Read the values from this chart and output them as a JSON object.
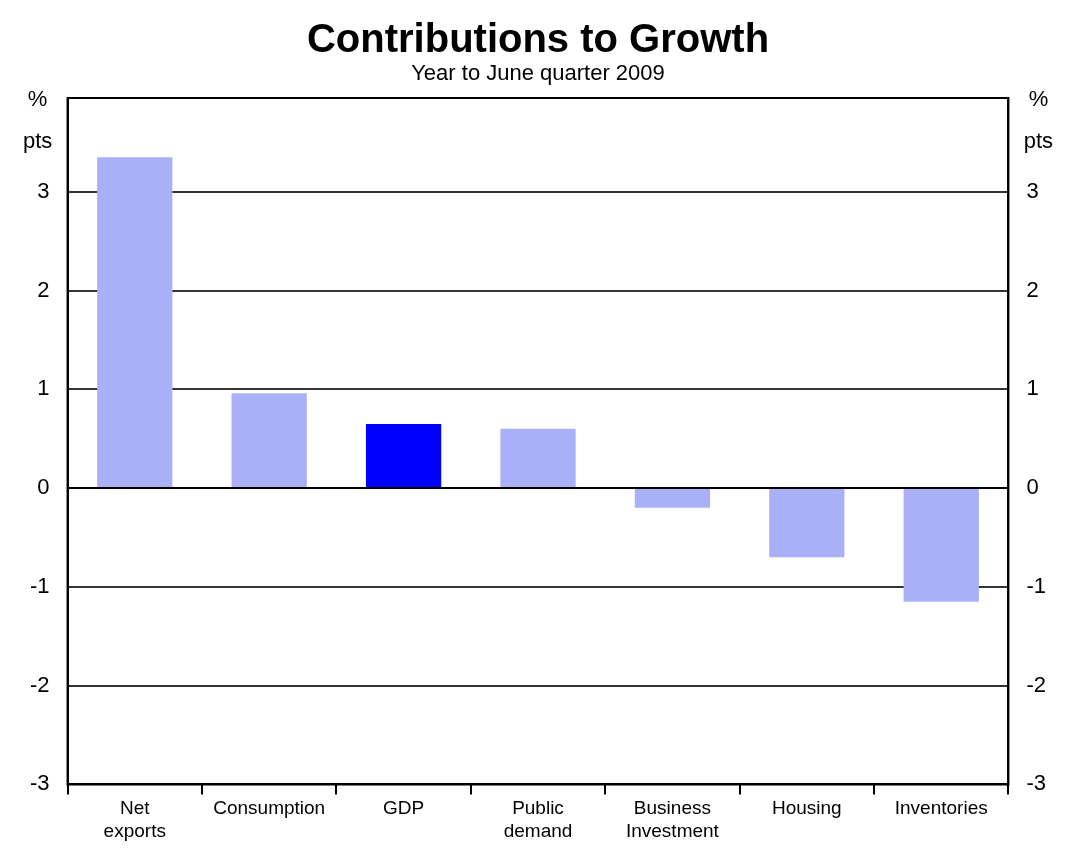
{
  "chart_data": {
    "type": "bar",
    "title": "Contributions to Growth",
    "subtitle": "Year to June quarter 2009",
    "categories": [
      "Net exports",
      "Consumption",
      "GDP",
      "Public demand",
      "Business Investment",
      "Housing",
      "Inventories"
    ],
    "values": [
      3.35,
      0.96,
      0.65,
      0.6,
      -0.2,
      -0.7,
      -1.15
    ],
    "colors": [
      "#aab0f8",
      "#aab0f8",
      "#0000ff",
      "#aab0f8",
      "#aab0f8",
      "#aab0f8",
      "#aab0f8"
    ],
    "ylabel": "% pts",
    "y2label": "% pts",
    "ylim": [
      -3,
      3.95
    ],
    "yticks": [
      -3,
      -2,
      -1,
      0,
      1,
      2,
      3
    ],
    "y2lim": [
      -3,
      3.95
    ],
    "y2ticks": [
      -3,
      -2,
      -1,
      0,
      1,
      2,
      3
    ],
    "grid": "y"
  }
}
